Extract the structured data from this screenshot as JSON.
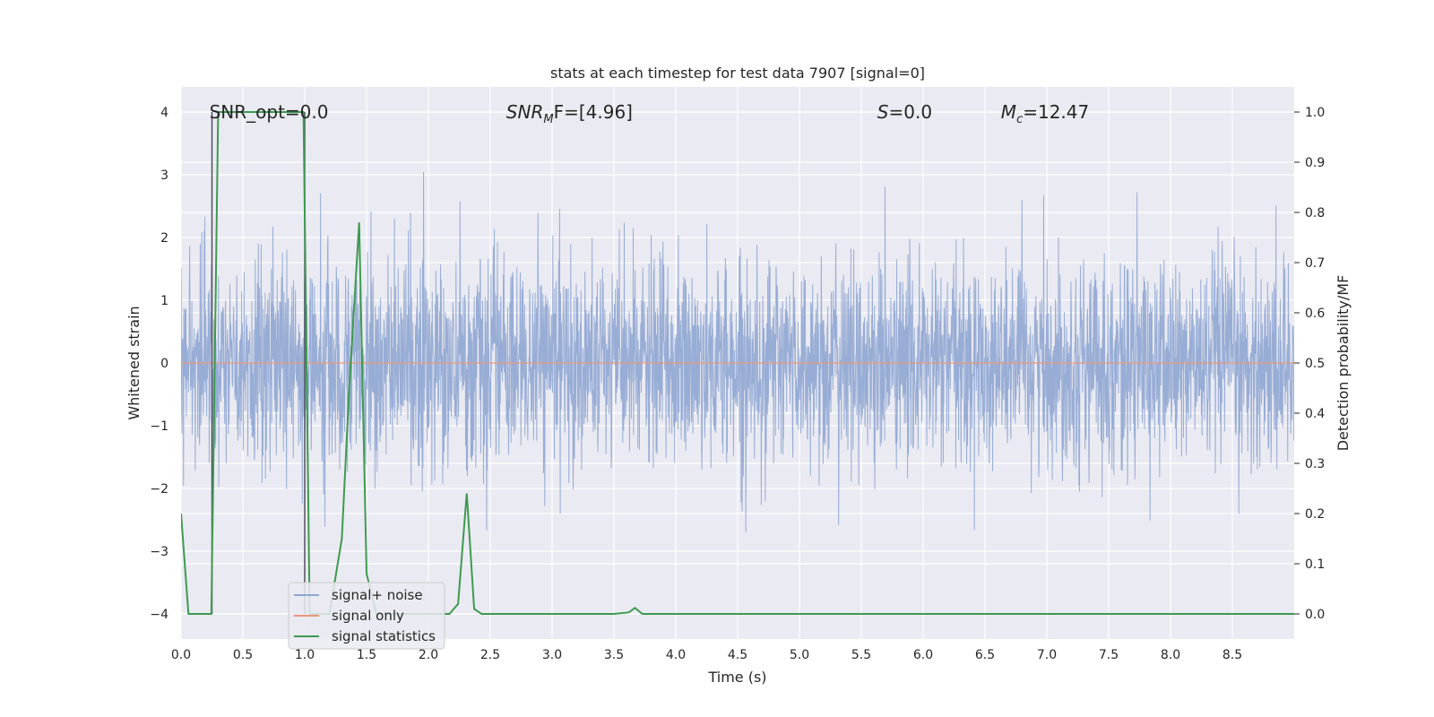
{
  "chart_data": {
    "type": "line",
    "title": "stats at each timestep for test data 7907 [signal=0]",
    "xlabel": "Time (s)",
    "ylabel": "Whitened strain",
    "y2label": "Detection probability/MF",
    "xlim": [
      0.0,
      9.0
    ],
    "ylim": [
      -4.4,
      4.4
    ],
    "y2lim": [
      -0.05,
      1.05
    ],
    "xticks": [
      "0.0",
      "0.5",
      "1.0",
      "1.5",
      "2.0",
      "2.5",
      "3.0",
      "3.5",
      "4.0",
      "4.5",
      "5.0",
      "5.5",
      "6.0",
      "6.5",
      "7.0",
      "7.5",
      "8.0",
      "8.5"
    ],
    "yticks": [
      "4",
      "3",
      "2",
      "1",
      "0",
      "−1",
      "−2",
      "−3",
      "−4"
    ],
    "y2ticks": [
      "1.0",
      "0.9",
      "0.8",
      "0.7",
      "0.6",
      "0.5",
      "0.4",
      "0.3",
      "0.2",
      "0.1",
      "0.0"
    ],
    "grid": true,
    "legend_position": "lower-left",
    "annotations": [
      {
        "text": "SNR_opt=0.0",
        "x": 0.2,
        "y": 4.0
      },
      {
        "prefix": "SNR",
        "sub": "M",
        "suffix": "F=[4.96]",
        "x": 2.6,
        "y": 4.0
      },
      {
        "prefix": "S",
        "sub": "",
        "suffix": "=0.0",
        "x": 5.6,
        "y": 4.0
      },
      {
        "prefix": "M",
        "sub": "c",
        "suffix": "=12.47",
        "x": 6.6,
        "y": 4.0
      }
    ],
    "series": [
      {
        "name": "signal+ noise",
        "color": "#8fa6d1",
        "kind": "noise",
        "sigma": 0.8,
        "duration": 9.0
      },
      {
        "name": "signal only",
        "color": "#e9967a",
        "kind": "flat",
        "value": 0.0
      },
      {
        "name": "signal statistics",
        "color": "#3d9a50",
        "axis": "right",
        "x": [
          0.0,
          0.06,
          0.1,
          0.15,
          0.2,
          0.245,
          0.3,
          0.35,
          0.5,
          0.7,
          0.9,
          0.99,
          1.04,
          1.1,
          1.2,
          1.3,
          1.36,
          1.44,
          1.5,
          1.58,
          1.7,
          2.0,
          2.17,
          2.24,
          2.31,
          2.37,
          2.43,
          2.5,
          3.0,
          3.5,
          3.62,
          3.67,
          3.73,
          4.0,
          5.0,
          6.0,
          7.0,
          8.0,
          9.0
        ],
        "y": [
          0.2,
          0.0,
          0.0,
          0.0,
          0.0,
          0.0,
          1.0,
          1.0,
          1.0,
          1.0,
          1.0,
          1.0,
          0.0,
          0.0,
          0.0,
          0.15,
          0.45,
          0.78,
          0.08,
          0.0,
          0.0,
          0.0,
          0.0,
          0.02,
          0.24,
          0.01,
          0.0,
          0.0,
          0.0,
          0.0,
          0.003,
          0.012,
          0.0,
          0.0,
          0.0,
          0.0,
          0.0,
          0.0,
          0.0
        ]
      }
    ],
    "vertical_lines": [
      {
        "x": 0.25,
        "y_from": -4.0,
        "y_to": 4.0,
        "color": "#505060"
      },
      {
        "x": 1.0,
        "y_from": -4.0,
        "y_to": 4.0,
        "color": "#505060"
      }
    ]
  }
}
